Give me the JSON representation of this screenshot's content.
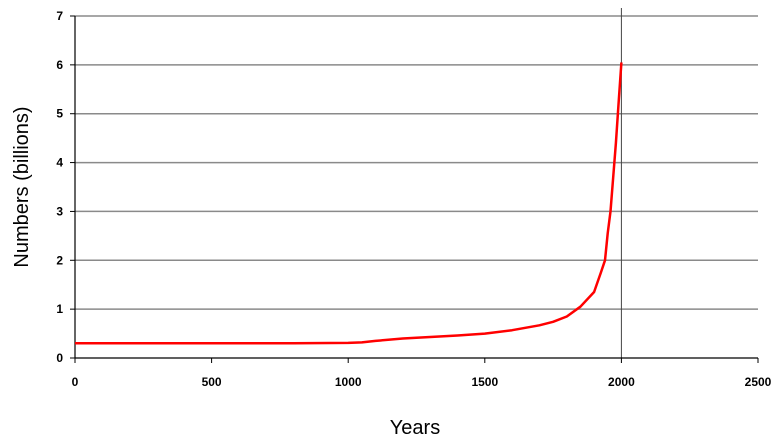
{
  "chart_data": {
    "type": "line",
    "xlabel": "Years",
    "ylabel": "Numbers (billions)",
    "xlim": [
      0,
      2500
    ],
    "ylim": [
      0,
      7
    ],
    "xticks": [
      0,
      500,
      1000,
      1500,
      2000,
      2500
    ],
    "yticks": [
      0,
      1,
      2,
      3,
      4,
      5,
      6,
      7
    ],
    "grid": "horizontal",
    "legend": "none",
    "reference_line_x": 2000,
    "series": [
      {
        "color": "#ff0000",
        "x": [
          0,
          500,
          800,
          1000,
          1050,
          1100,
          1200,
          1300,
          1400,
          1500,
          1600,
          1700,
          1750,
          1800,
          1850,
          1900,
          1925,
          1940,
          1950,
          1960,
          1970,
          1980,
          1990,
          2000
        ],
        "y": [
          0.3,
          0.3,
          0.3,
          0.31,
          0.32,
          0.35,
          0.4,
          0.43,
          0.46,
          0.5,
          0.57,
          0.67,
          0.74,
          0.85,
          1.05,
          1.35,
          1.75,
          2.0,
          2.55,
          3.0,
          3.7,
          4.4,
          5.25,
          6.05
        ]
      }
    ]
  }
}
